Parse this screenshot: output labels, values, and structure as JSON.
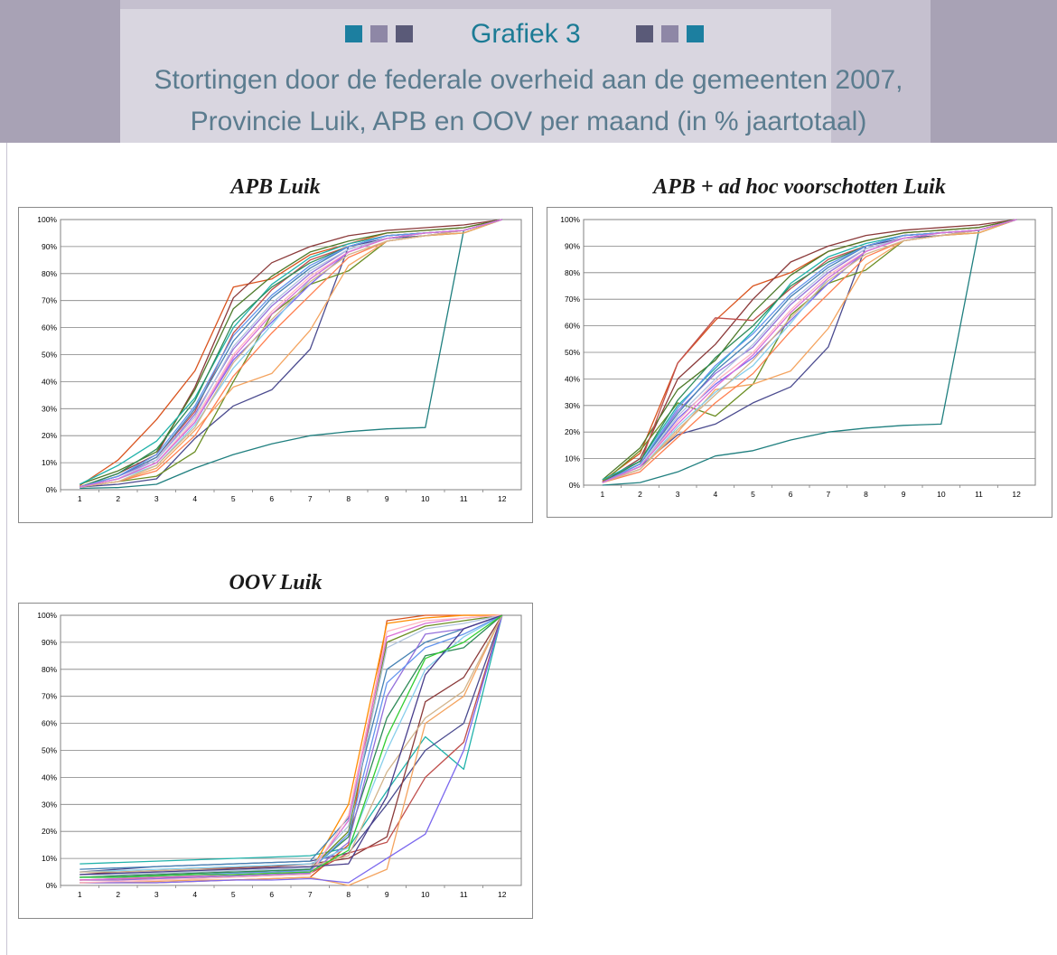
{
  "header": {
    "title": "Grafiek 3",
    "subtitle_line1": "Stortingen door de federale overheid aan de gemeenten 2007,",
    "subtitle_line2": "Provincie Luik, APB en OOV per maand (in % jaartotaal)",
    "left_squares": [
      "#1c7fa0",
      "#8e87a6",
      "#5a5a78"
    ],
    "right_squares": [
      "#5a5a78",
      "#8e87a6",
      "#1c7fa0"
    ],
    "title_color": "#1c7b95",
    "subtitle_color": "#5b7c8f"
  },
  "chart_data": [
    {
      "type": "line",
      "title": "APB Luik",
      "x": [
        1,
        2,
        3,
        4,
        5,
        6,
        7,
        8,
        9,
        10,
        11,
        12
      ],
      "ylim": [
        0,
        100
      ],
      "y_tick_labels": [
        "0%",
        "10%",
        "20%",
        "30%",
        "40%",
        "50%",
        "60%",
        "70%",
        "80%",
        "90%",
        "100%"
      ],
      "x_tick_labels": [
        "1",
        "2",
        "3",
        "4",
        "5",
        "6",
        "7",
        "8",
        "9",
        "10",
        "11",
        "12"
      ],
      "grid": true,
      "series": [
        {
          "color": "#1f7f7f",
          "values": [
            0.5,
            0.8,
            2,
            8,
            13,
            17,
            20,
            21.5,
            22.5,
            23,
            96,
            100
          ]
        },
        {
          "color": "#4b4b8f",
          "values": [
            1,
            2,
            4,
            19,
            31,
            37,
            52,
            90,
            93,
            94,
            96,
            100
          ]
        },
        {
          "color": "#d9531e",
          "values": [
            1.5,
            11,
            26,
            44,
            75,
            78,
            87,
            91,
            95,
            96,
            97,
            100
          ]
        },
        {
          "color": "#8b3a3a",
          "values": [
            1,
            6,
            13,
            38,
            71,
            84,
            90,
            94,
            96,
            97,
            98,
            100
          ]
        },
        {
          "color": "#6b8e23",
          "values": [
            1,
            3,
            5,
            14,
            40,
            65,
            76,
            81,
            92,
            94,
            95,
            100
          ]
        },
        {
          "color": "#4d7a2a",
          "values": [
            2,
            7,
            14,
            37,
            67,
            79,
            88,
            92,
            95,
            96,
            97,
            100
          ]
        },
        {
          "color": "#20b2aa",
          "values": [
            2,
            9,
            18,
            34,
            60,
            76,
            86,
            91,
            94,
            95,
            96,
            100
          ]
        },
        {
          "color": "#c0504d",
          "values": [
            1,
            5,
            12,
            29,
            58,
            74,
            85,
            90,
            94,
            95,
            96,
            100
          ]
        },
        {
          "color": "#f4a460",
          "values": [
            1,
            3,
            8,
            22,
            38,
            43,
            59,
            83,
            92,
            94,
            95,
            100
          ]
        },
        {
          "color": "#7b68ee",
          "values": [
            1,
            4,
            10,
            25,
            48,
            62,
            76,
            88,
            93,
            95,
            96,
            100
          ]
        },
        {
          "color": "#9370db",
          "values": [
            1,
            5,
            11,
            28,
            52,
            68,
            80,
            89,
            93,
            95,
            96,
            100
          ]
        },
        {
          "color": "#2e8b57",
          "values": [
            1,
            6,
            15,
            33,
            62,
            75,
            84,
            90,
            94,
            95,
            96,
            100
          ]
        },
        {
          "color": "#87ceeb",
          "values": [
            1,
            4,
            9,
            24,
            45,
            61,
            78,
            88,
            93,
            95,
            96,
            100
          ]
        },
        {
          "color": "#ff7f50",
          "values": [
            1,
            3,
            7,
            20,
            42,
            58,
            72,
            86,
            92,
            94,
            96,
            100
          ]
        },
        {
          "color": "#ffb6c1",
          "values": [
            1,
            4,
            10,
            26,
            50,
            66,
            79,
            88,
            93,
            95,
            96,
            100
          ]
        },
        {
          "color": "#4682b4",
          "values": [
            1,
            5,
            12,
            30,
            55,
            71,
            82,
            90,
            94,
            95,
            96,
            100
          ]
        },
        {
          "color": "#b0c4de",
          "values": [
            1,
            4,
            11,
            27,
            53,
            69,
            81,
            89,
            93,
            95,
            96,
            100
          ]
        },
        {
          "color": "#d2b48c",
          "values": [
            1,
            3,
            9,
            23,
            47,
            63,
            77,
            87,
            92,
            94,
            96,
            100
          ]
        },
        {
          "color": "#6495ed",
          "values": [
            1,
            5,
            13,
            31,
            57,
            72,
            83,
            90,
            94,
            95,
            96,
            100
          ]
        },
        {
          "color": "#da70d6",
          "values": [
            1,
            4,
            10,
            25,
            49,
            65,
            78,
            88,
            93,
            95,
            96,
            100
          ]
        }
      ]
    },
    {
      "type": "line",
      "title": "APB + ad hoc voorschotten Luik",
      "x": [
        1,
        2,
        3,
        4,
        5,
        6,
        7,
        8,
        9,
        10,
        11,
        12
      ],
      "ylim": [
        0,
        100
      ],
      "y_tick_labels": [
        "0%",
        "10%",
        "20%",
        "30%",
        "40%",
        "50%",
        "60%",
        "70%",
        "80%",
        "90%",
        "100%"
      ],
      "x_tick_labels": [
        "1",
        "2",
        "3",
        "4",
        "5",
        "6",
        "7",
        "8",
        "9",
        "10",
        "11",
        "12"
      ],
      "grid": true,
      "series": [
        {
          "color": "#1f7f7f",
          "values": [
            0,
            1,
            5,
            11,
            13,
            17,
            20,
            21.5,
            22.5,
            23,
            96,
            100
          ]
        },
        {
          "color": "#4b4b8f",
          "values": [
            1,
            7,
            19,
            23,
            31,
            37,
            52,
            90,
            93,
            94,
            96,
            100
          ]
        },
        {
          "color": "#d9531e",
          "values": [
            1.5,
            12,
            46,
            62,
            75,
            80,
            88,
            92,
            95,
            96,
            97,
            100
          ]
        },
        {
          "color": "#8b3a3a",
          "values": [
            1,
            10,
            40,
            53,
            70,
            84,
            90,
            94,
            96,
            97,
            98,
            100
          ]
        },
        {
          "color": "#6b8e23",
          "values": [
            1,
            13,
            31,
            26,
            38,
            64,
            76,
            81,
            92,
            94,
            95,
            100
          ]
        },
        {
          "color": "#4d7a2a",
          "values": [
            2,
            14,
            36,
            47,
            65,
            79,
            88,
            92,
            95,
            96,
            97,
            100
          ]
        },
        {
          "color": "#20b2aa",
          "values": [
            2,
            9,
            30,
            44,
            58,
            76,
            86,
            91,
            94,
            95,
            96,
            100
          ]
        },
        {
          "color": "#c0504d",
          "values": [
            1,
            8,
            46,
            63,
            62,
            74,
            85,
            90,
            94,
            95,
            96,
            100
          ]
        },
        {
          "color": "#f4a460",
          "values": [
            1,
            6,
            20,
            36,
            38,
            43,
            59,
            83,
            92,
            94,
            95,
            100
          ]
        },
        {
          "color": "#7b68ee",
          "values": [
            1,
            7,
            25,
            38,
            48,
            62,
            76,
            88,
            93,
            95,
            96,
            100
          ]
        },
        {
          "color": "#9370db",
          "values": [
            1,
            8,
            28,
            42,
            52,
            68,
            80,
            89,
            93,
            95,
            96,
            100
          ]
        },
        {
          "color": "#2e8b57",
          "values": [
            1,
            9,
            32,
            48,
            60,
            75,
            84,
            90,
            94,
            95,
            96,
            100
          ]
        },
        {
          "color": "#87ceeb",
          "values": [
            1,
            6,
            22,
            35,
            45,
            61,
            78,
            88,
            93,
            95,
            96,
            100
          ]
        },
        {
          "color": "#ff7f50",
          "values": [
            1,
            5,
            18,
            31,
            42,
            58,
            72,
            86,
            92,
            94,
            96,
            100
          ]
        },
        {
          "color": "#ffb6c1",
          "values": [
            1,
            7,
            24,
            39,
            50,
            66,
            79,
            88,
            93,
            95,
            96,
            100
          ]
        },
        {
          "color": "#4682b4",
          "values": [
            1,
            8,
            27,
            43,
            55,
            71,
            82,
            90,
            94,
            95,
            96,
            100
          ]
        },
        {
          "color": "#b0c4de",
          "values": [
            1,
            7,
            26,
            40,
            53,
            69,
            81,
            89,
            93,
            95,
            96,
            100
          ]
        },
        {
          "color": "#d2b48c",
          "values": [
            1,
            6,
            21,
            34,
            47,
            63,
            77,
            87,
            92,
            94,
            96,
            100
          ]
        },
        {
          "color": "#6495ed",
          "values": [
            1,
            8,
            29,
            45,
            57,
            72,
            83,
            90,
            94,
            95,
            96,
            100
          ]
        },
        {
          "color": "#da70d6",
          "values": [
            1,
            7,
            23,
            37,
            49,
            65,
            78,
            88,
            93,
            95,
            96,
            100
          ]
        }
      ]
    },
    {
      "type": "line",
      "title": "OOV Luik",
      "x": [
        1,
        2,
        3,
        4,
        5,
        6,
        7,
        8,
        9,
        10,
        11,
        12
      ],
      "ylim": [
        0,
        100
      ],
      "y_tick_labels": [
        "0%",
        "10%",
        "20%",
        "30%",
        "40%",
        "50%",
        "60%",
        "70%",
        "80%",
        "90%",
        "100%"
      ],
      "x_tick_labels": [
        "1",
        "2",
        "3",
        "4",
        "5",
        "6",
        "7",
        "8",
        "9",
        "10",
        "11",
        "12"
      ],
      "grid": true,
      "series": [
        {
          "color": "#20b2aa",
          "values": [
            8,
            8.5,
            9,
            9.5,
            10,
            10.5,
            11,
            14,
            35,
            55,
            43,
            100
          ]
        },
        {
          "color": "#4b4b8f",
          "values": [
            5,
            6,
            7,
            7.5,
            8,
            8.5,
            9,
            12,
            30,
            50,
            60,
            100
          ]
        },
        {
          "color": "#d9531e",
          "values": [
            1,
            1,
            1,
            1.5,
            2,
            2.5,
            3,
            15,
            98,
            100,
            100,
            100
          ]
        },
        {
          "color": "#ff8c00",
          "values": [
            2,
            2,
            3,
            3,
            3.5,
            4,
            5,
            30,
            97,
            99,
            100,
            100
          ]
        },
        {
          "color": "#8b3a3a",
          "values": [
            4,
            5,
            5.5,
            6,
            6.5,
            7,
            8,
            10,
            18,
            68,
            77,
            100
          ]
        },
        {
          "color": "#6b8e23",
          "values": [
            3,
            3.5,
            4,
            4.5,
            5,
            5,
            6,
            20,
            90,
            96,
            98,
            100
          ]
        },
        {
          "color": "#c0504d",
          "values": [
            2,
            2.5,
            3,
            3,
            3.5,
            4,
            4.5,
            12,
            16,
            40,
            53,
            100
          ]
        },
        {
          "color": "#4682b4",
          "values": [
            6,
            6.5,
            7,
            7.5,
            8,
            8.5,
            9,
            25,
            80,
            90,
            95,
            100
          ]
        },
        {
          "color": "#f4a460",
          "values": [
            1,
            1,
            1.5,
            2,
            2,
            2.5,
            3,
            0,
            6,
            60,
            70,
            100
          ]
        },
        {
          "color": "#2e8b57",
          "values": [
            3,
            3.5,
            4,
            4.5,
            5,
            5.5,
            6,
            18,
            62,
            85,
            88,
            100
          ]
        },
        {
          "color": "#9370db",
          "values": [
            2,
            2,
            2.5,
            3,
            3.5,
            4,
            4.5,
            16,
            70,
            93,
            95,
            100
          ]
        },
        {
          "color": "#87ceeb",
          "values": [
            5,
            5.5,
            6,
            6.5,
            7,
            7.5,
            8,
            14,
            50,
            80,
            92,
            100
          ]
        },
        {
          "color": "#7b68ee",
          "values": [
            1,
            1,
            1,
            1.5,
            2,
            2,
            2.5,
            1,
            10,
            19,
            50,
            100
          ]
        },
        {
          "color": "#b0c4de",
          "values": [
            4,
            4,
            4.5,
            5,
            5.5,
            6,
            6.5,
            22,
            88,
            95,
            97,
            100
          ]
        },
        {
          "color": "#da70d6",
          "values": [
            2,
            2.5,
            3,
            3.5,
            4,
            4.5,
            5,
            24,
            92,
            97,
            99,
            100
          ]
        },
        {
          "color": "#6495ed",
          "values": [
            3,
            3,
            3.5,
            4,
            4.5,
            5,
            5.5,
            19,
            75,
            88,
            93,
            100
          ]
        },
        {
          "color": "#ffb6c1",
          "values": [
            1,
            1.5,
            2,
            2.5,
            3,
            3.5,
            4,
            26,
            94,
            98,
            99,
            100
          ]
        },
        {
          "color": "#d2b48c",
          "values": [
            5,
            5,
            5.5,
            6,
            6,
            6.5,
            7,
            11,
            42,
            62,
            72,
            100
          ]
        },
        {
          "color": "#483d8b",
          "values": [
            4,
            4.5,
            5,
            5.5,
            6,
            6.5,
            7,
            8,
            33,
            78,
            95,
            100
          ]
        },
        {
          "color": "#32cd32",
          "values": [
            3,
            3,
            3.5,
            4,
            4,
            4.5,
            5,
            13,
            55,
            84,
            90,
            100
          ]
        }
      ]
    }
  ]
}
